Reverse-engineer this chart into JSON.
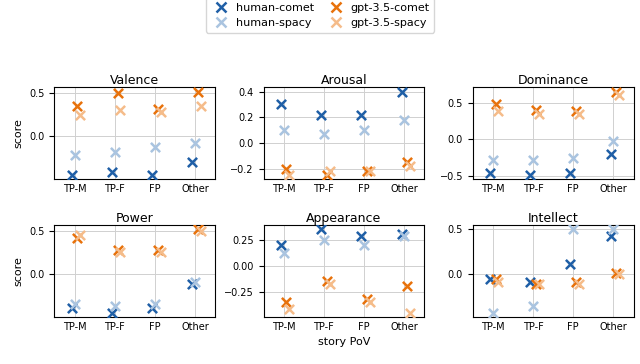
{
  "categories": [
    "TP-M",
    "TP-F",
    "FP",
    "Other"
  ],
  "subplots": [
    {
      "title": "Valence",
      "series": {
        "human-comet": [
          -0.45,
          -0.42,
          -0.45,
          -0.3
        ],
        "human-spacy": [
          -0.22,
          -0.18,
          -0.13,
          -0.08
        ],
        "gpt-3.5-comet": [
          0.35,
          0.5,
          0.32,
          0.52
        ],
        "gpt-3.5-spacy": [
          0.25,
          0.3,
          0.28,
          0.35
        ]
      }
    },
    {
      "title": "Arousal",
      "series": {
        "human-comet": [
          0.3,
          0.22,
          0.22,
          0.4
        ],
        "human-spacy": [
          0.1,
          0.07,
          0.1,
          0.18
        ],
        "gpt-3.5-comet": [
          -0.2,
          -0.25,
          -0.22,
          -0.15
        ],
        "gpt-3.5-spacy": [
          -0.25,
          -0.22,
          -0.22,
          -0.18
        ]
      }
    },
    {
      "title": "Dominance",
      "series": {
        "human-comet": [
          -0.45,
          -0.48,
          -0.45,
          -0.2
        ],
        "human-spacy": [
          -0.28,
          -0.28,
          -0.25,
          -0.02
        ],
        "gpt-3.5-comet": [
          0.48,
          0.4,
          0.38,
          0.65
        ],
        "gpt-3.5-spacy": [
          0.38,
          0.35,
          0.35,
          0.6
        ]
      }
    },
    {
      "title": "Power",
      "series": {
        "human-comet": [
          -0.4,
          -0.45,
          -0.4,
          -0.12
        ],
        "human-spacy": [
          -0.35,
          -0.38,
          -0.35,
          -0.1
        ],
        "gpt-3.5-comet": [
          0.42,
          0.28,
          0.28,
          0.52
        ],
        "gpt-3.5-spacy": [
          0.45,
          0.25,
          0.25,
          0.5
        ]
      }
    },
    {
      "title": "Appearance",
      "series": {
        "human-comet": [
          0.2,
          0.35,
          0.28,
          0.3
        ],
        "human-spacy": [
          0.12,
          0.25,
          0.2,
          0.28
        ],
        "gpt-3.5-comet": [
          -0.35,
          -0.15,
          -0.32,
          -0.2
        ],
        "gpt-3.5-spacy": [
          -0.42,
          -0.18,
          -0.35,
          -0.45
        ]
      }
    },
    {
      "title": "Intellect",
      "series": {
        "human-comet": [
          -0.05,
          -0.08,
          0.12,
          0.42
        ],
        "human-spacy": [
          -0.42,
          -0.35,
          0.5,
          0.5
        ],
        "gpt-3.5-comet": [
          -0.05,
          -0.1,
          -0.08,
          0.02
        ],
        "gpt-3.5-spacy": [
          -0.08,
          -0.1,
          -0.1,
          0.0
        ]
      }
    }
  ],
  "colors": {
    "human-comet": "#1f5fa6",
    "human-spacy": "#aac4e0",
    "gpt-3.5-comet": "#e8720c",
    "gpt-3.5-spacy": "#f5bc8a"
  },
  "series_order": [
    "human-comet",
    "human-spacy",
    "gpt-3.5-comet",
    "gpt-3.5-spacy"
  ],
  "marker_size": 7,
  "linewidth": 1.8,
  "xlabel": "story PoV",
  "ylabel": "score",
  "legend_row1": [
    "human-comet",
    "human-spacy"
  ],
  "legend_row2": [
    "gpt-3.5-comet",
    "gpt-3.5-spacy"
  ]
}
